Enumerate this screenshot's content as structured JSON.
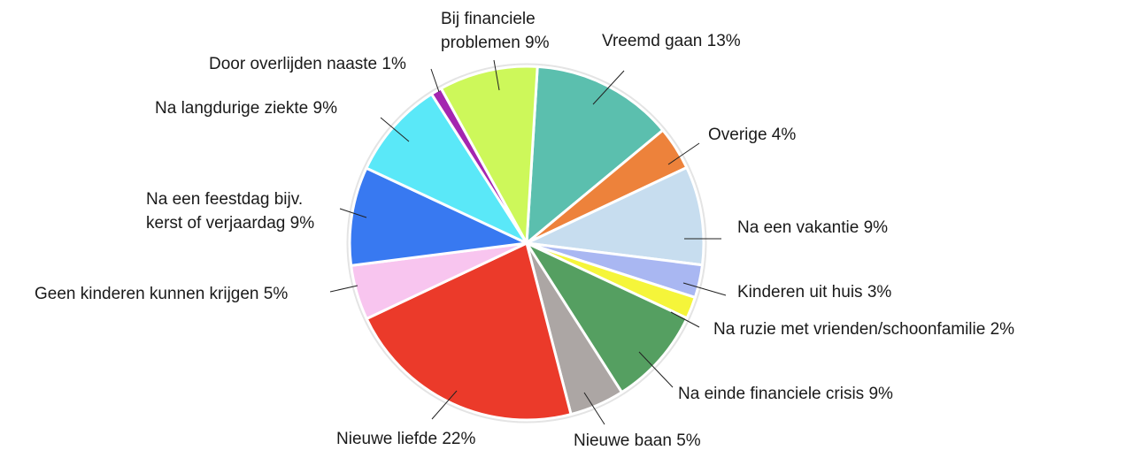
{
  "chart_data": {
    "type": "pie",
    "slices": [
      {
        "label_lines": [
          "Vreemd gaan 13%"
        ],
        "value": 13,
        "color": "#5bbfae"
      },
      {
        "label_lines": [
          "Overige 4%"
        ],
        "value": 4,
        "color": "#ed823b"
      },
      {
        "label_lines": [
          "Na een vakantie 9%"
        ],
        "value": 9,
        "color": "#c7ddef"
      },
      {
        "label_lines": [
          "Kinderen uit huis 3%"
        ],
        "value": 3,
        "color": "#a9b7f2"
      },
      {
        "label_lines": [
          "Na ruzie met vrienden/schoonfamilie 2%"
        ],
        "value": 2,
        "color": "#f5f53a"
      },
      {
        "label_lines": [
          "Na einde financiele crisis 9%"
        ],
        "value": 9,
        "color": "#559f61"
      },
      {
        "label_lines": [
          "Nieuwe baan 5%"
        ],
        "value": 5,
        "color": "#aca6a4"
      },
      {
        "label_lines": [
          "Nieuwe liefde 22%"
        ],
        "value": 22,
        "color": "#eb3a2a"
      },
      {
        "label_lines": [
          "Geen kinderen kunnen krijgen 5%"
        ],
        "value": 5,
        "color": "#f8c5ef"
      },
      {
        "label_lines": [
          "Na een feestdag bijv.",
          "kerst of verjaardag 9%"
        ],
        "value": 9,
        "color": "#3879f1"
      },
      {
        "label_lines": [
          "Na langdurige ziekte 9%"
        ],
        "value": 9,
        "color": "#5ae8f8"
      },
      {
        "label_lines": [
          "Door overlijden naaste 1%"
        ],
        "value": 1,
        "color": "#a425b0"
      },
      {
        "label_lines": [
          "Bij financiele",
          "problemen 9%"
        ],
        "value": 9,
        "color": "#cdf85a"
      }
    ]
  }
}
